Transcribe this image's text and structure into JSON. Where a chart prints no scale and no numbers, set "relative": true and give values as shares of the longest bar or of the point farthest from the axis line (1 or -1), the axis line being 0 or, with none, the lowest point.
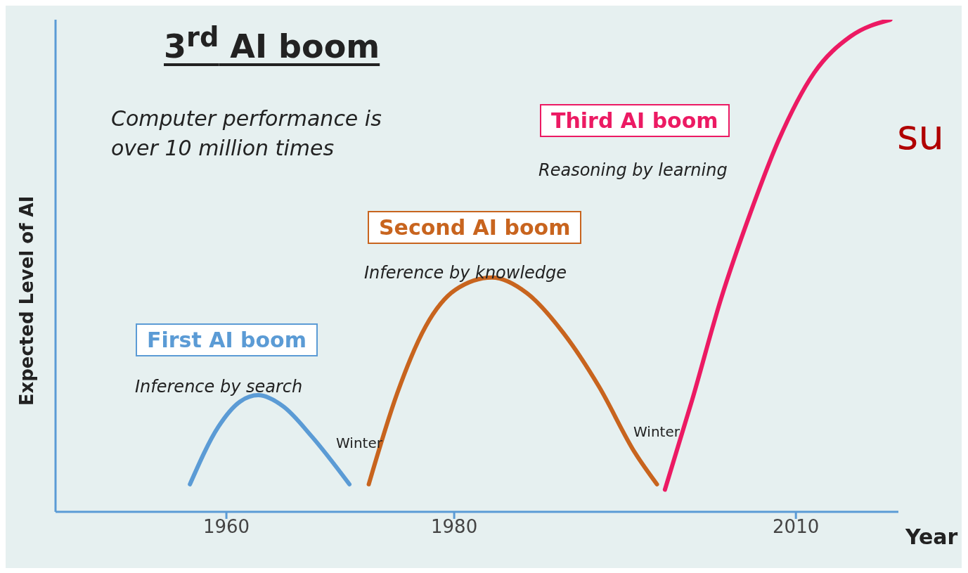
{
  "chart_data": {
    "type": "line",
    "title": "3$^{rd}$ AI boom",
    "ylabel": "Expected Level of AI",
    "xlabel": "Year",
    "relative": true,
    "xlim": [
      1945,
      2019
    ],
    "xticks": [
      1960,
      1980,
      2010
    ],
    "series": [
      {
        "name": "First AI boom",
        "color": "#5b9bd5",
        "x": [
          1956.8,
          1959.3,
          1961.2,
          1962.8,
          1965.0,
          1967.5,
          1970.8
        ],
        "values": [
          0.056,
          0.173,
          0.224,
          0.237,
          0.214,
          0.153,
          0.056
        ]
      },
      {
        "name": "Second AI boom",
        "color": "#c8641e",
        "x": [
          1972.5,
          1975.0,
          1977.5,
          1980.1,
          1983.3,
          1986.4,
          1989.6,
          1992.7,
          1995.9,
          1997.8
        ],
        "values": [
          0.056,
          0.241,
          0.377,
          0.451,
          0.476,
          0.444,
          0.363,
          0.255,
          0.119,
          0.056
        ]
      },
      {
        "name": "Third AI boom",
        "color": "#ec1a63",
        "x": [
          1998.5,
          2000.9,
          2003.4,
          2006.0,
          2008.5,
          2011.6,
          2014.8,
          2018.3
        ],
        "values": [
          0.045,
          0.228,
          0.431,
          0.607,
          0.756,
          0.892,
          0.966,
          1
        ]
      }
    ],
    "annotations": [
      "Computer performance is over 10 million times",
      "Inference by search",
      "Inference by knowledge",
      "Reasoning by learning",
      "Winter",
      "Winter",
      "su"
    ]
  }
}
